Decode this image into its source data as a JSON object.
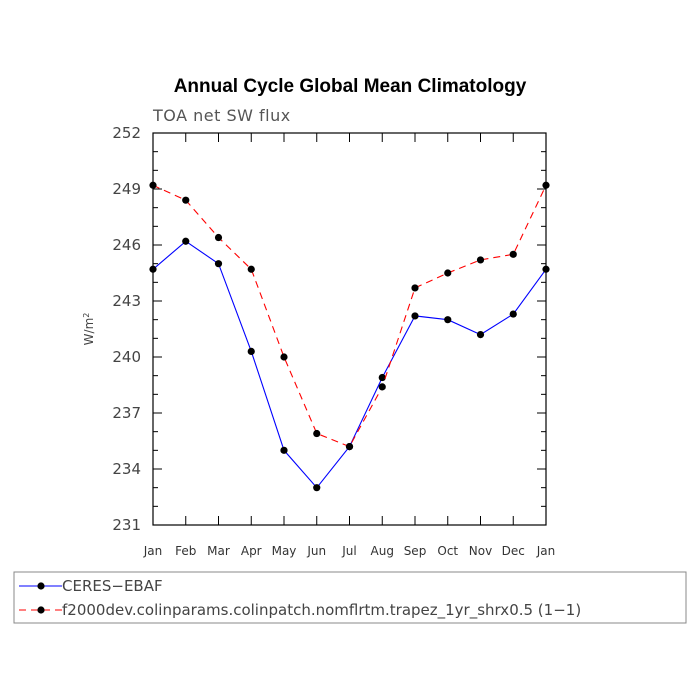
{
  "chart_data": {
    "type": "line",
    "title": "Annual Cycle Global Mean Climatology",
    "subtitle": "TOA net SW flux",
    "ylabel": "W/m",
    "ylabel_sup": "2",
    "ylim": [
      231,
      252
    ],
    "yticks": [
      "231",
      "234",
      "237",
      "240",
      "243",
      "246",
      "249",
      "252"
    ],
    "categories": [
      "Jan",
      "Feb",
      "Mar",
      "Apr",
      "May",
      "Jun",
      "Jul",
      "Aug",
      "Sep",
      "Oct",
      "Nov",
      "Dec",
      "Jan"
    ],
    "grid": false,
    "legend_position": "bottom",
    "series": [
      {
        "name": "CERES−EBAF",
        "color": "#0000ff",
        "dash": "solid",
        "values": [
          244.7,
          246.2,
          245.0,
          240.3,
          235.0,
          233.0,
          235.2,
          238.9,
          242.2,
          242.0,
          241.2,
          242.3,
          244.7
        ]
      },
      {
        "name": "f2000dev.colinparams.colinpatch.nomflrtm.trapez_1yr_shrx0.5 (1−1)",
        "color": "#ff0000",
        "dash": "dashed",
        "values": [
          249.2,
          248.4,
          246.4,
          244.7,
          240.0,
          235.9,
          235.2,
          238.4,
          243.7,
          244.5,
          245.2,
          245.5,
          249.2
        ]
      }
    ]
  }
}
